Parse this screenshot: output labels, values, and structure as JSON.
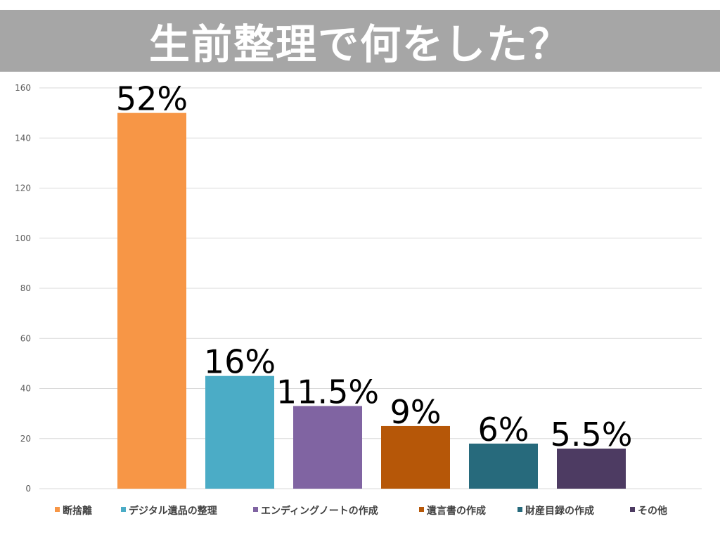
{
  "title": "生前整理で何をした？",
  "chart_data": {
    "type": "bar",
    "title": "生前整理で何をした？",
    "xlabel": "",
    "ylabel": "",
    "ylim": [
      0,
      160
    ],
    "yticks": [
      0,
      20,
      40,
      60,
      80,
      100,
      120,
      140,
      160
    ],
    "grid": true,
    "legend_position": "bottom",
    "categories": [
      "断捨離",
      "デジタル遺品の整理",
      "エンディングノートの作成",
      "遺言書の作成",
      "財産目録の作成",
      "その他"
    ],
    "values": [
      150,
      45,
      33,
      25,
      18,
      16
    ],
    "labels": [
      "52%",
      "16%",
      "11.5%",
      "9%",
      "6%",
      "5.5%"
    ],
    "colors": [
      "#f79646",
      "#4bacc6",
      "#8064a2",
      "#b65708",
      "#276a7c",
      "#4d3b62"
    ]
  }
}
